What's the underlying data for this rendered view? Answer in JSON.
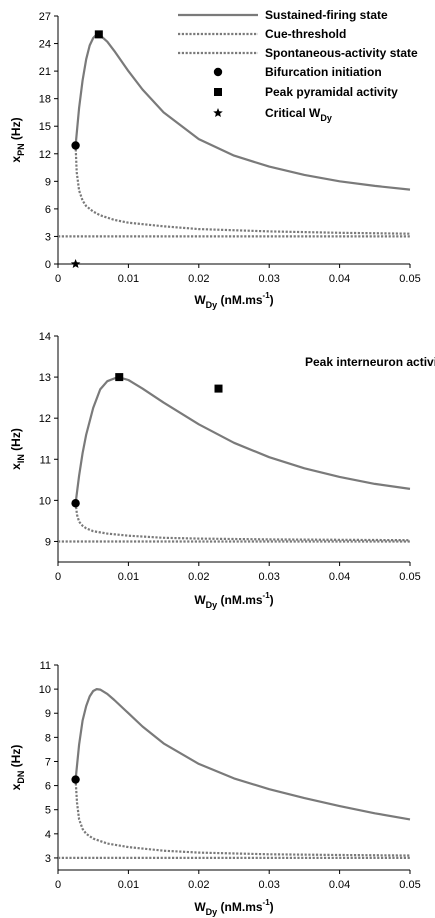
{
  "colors": {
    "curve": "#7a7a7a",
    "axis": "#000000",
    "marker": "#000000"
  },
  "legend": [
    {
      "label": "Sustained-firing state",
      "style": "solid-line"
    },
    {
      "label": "Cue-threshold",
      "style": "dotted-line"
    },
    {
      "label": "Spontaneous-activity state",
      "style": "dotted-line"
    },
    {
      "label": "Bifurcation initiation",
      "style": "circle-marker"
    },
    {
      "label": "Peak pyramidal activity",
      "style": "square-marker"
    },
    {
      "label": "Critical W",
      "sub": "Dy",
      "style": "star-marker"
    }
  ],
  "chart_data": [
    {
      "type": "line",
      "ylabel_main": "x",
      "ylabel_sub": "PN",
      "ylabel_unit": "(Hz)",
      "xlabel_main": "W",
      "xlabel_sub": "Dy",
      "xlabel_unit": "(nM.ms",
      "xlabel_sup": "-1",
      "xlabel_close": ")",
      "xlim": [
        0,
        0.05
      ],
      "ylim": [
        0,
        27
      ],
      "xticks": [
        0,
        0.01,
        0.02,
        0.03,
        0.04,
        0.05
      ],
      "xtick_labels": [
        "0",
        "0.01",
        "0.02",
        "0.03",
        "0.04",
        "0.05"
      ],
      "yticks": [
        0,
        3,
        6,
        9,
        12,
        15,
        18,
        21,
        24,
        27
      ],
      "series": [
        {
          "style": "solid",
          "points": [
            [
              0.0025,
              12.9
            ],
            [
              0.003,
              17
            ],
            [
              0.0035,
              20
            ],
            [
              0.004,
              22.3
            ],
            [
              0.0045,
              23.8
            ],
            [
              0.005,
              24.6
            ],
            [
              0.0055,
              25
            ],
            [
              0.006,
              24.9
            ],
            [
              0.007,
              24.2
            ],
            [
              0.008,
              23.2
            ],
            [
              0.01,
              21
            ],
            [
              0.012,
              19
            ],
            [
              0.015,
              16.5
            ],
            [
              0.02,
              13.6
            ],
            [
              0.025,
              11.8
            ],
            [
              0.03,
              10.6
            ],
            [
              0.035,
              9.7
            ],
            [
              0.04,
              9
            ],
            [
              0.045,
              8.5
            ],
            [
              0.05,
              8.1
            ]
          ]
        },
        {
          "style": "dotted",
          "points": [
            [
              0.0025,
              12.9
            ],
            [
              0.00265,
              10
            ],
            [
              0.003,
              8
            ],
            [
              0.0035,
              6.9
            ],
            [
              0.004,
              6.3
            ],
            [
              0.005,
              5.7
            ],
            [
              0.006,
              5.3
            ],
            [
              0.008,
              4.8
            ],
            [
              0.01,
              4.5
            ],
            [
              0.015,
              4.1
            ],
            [
              0.02,
              3.8
            ],
            [
              0.03,
              3.55
            ],
            [
              0.04,
              3.4
            ],
            [
              0.05,
              3.3
            ]
          ]
        },
        {
          "style": "dotted",
          "points": [
            [
              0,
              3
            ],
            [
              0.05,
              3
            ]
          ]
        }
      ],
      "markers": [
        {
          "shape": "circle",
          "x": 0.0025,
          "y": 12.9
        },
        {
          "shape": "square",
          "x": 0.0058,
          "y": 25
        },
        {
          "shape": "star",
          "x": 0.0025,
          "y": 0
        }
      ]
    },
    {
      "type": "line",
      "ylabel_main": "x",
      "ylabel_sub": "IN",
      "ylabel_unit": "(Hz)",
      "xlabel_main": "W",
      "xlabel_sub": "Dy",
      "xlabel_unit": "(nM.ms",
      "xlabel_sup": "-1",
      "xlabel_close": ")",
      "xlim": [
        0,
        0.05
      ],
      "ylim": [
        8.5,
        14
      ],
      "xticks": [
        0,
        0.01,
        0.02,
        0.03,
        0.04,
        0.05
      ],
      "xtick_labels": [
        "0",
        "0.01",
        "0.02",
        "0.03",
        "0.04",
        "0.05"
      ],
      "yticks": [
        9,
        10,
        11,
        12,
        13,
        14
      ],
      "annotation": {
        "label": "Peak  interneuron activity",
        "x": 0.0228,
        "y": 12.72
      },
      "series": [
        {
          "style": "solid",
          "points": [
            [
              0.0025,
              9.93
            ],
            [
              0.003,
              10.6
            ],
            [
              0.0035,
              11.15
            ],
            [
              0.004,
              11.6
            ],
            [
              0.005,
              12.25
            ],
            [
              0.006,
              12.7
            ],
            [
              0.007,
              12.9
            ],
            [
              0.0085,
              13
            ],
            [
              0.01,
              12.93
            ],
            [
              0.012,
              12.72
            ],
            [
              0.015,
              12.38
            ],
            [
              0.02,
              11.85
            ],
            [
              0.025,
              11.4
            ],
            [
              0.03,
              11.05
            ],
            [
              0.035,
              10.78
            ],
            [
              0.04,
              10.57
            ],
            [
              0.045,
              10.4
            ],
            [
              0.05,
              10.28
            ]
          ]
        },
        {
          "style": "dotted",
          "points": [
            [
              0.0025,
              9.93
            ],
            [
              0.0027,
              9.65
            ],
            [
              0.003,
              9.48
            ],
            [
              0.0035,
              9.38
            ],
            [
              0.004,
              9.32
            ],
            [
              0.005,
              9.25
            ],
            [
              0.007,
              9.19
            ],
            [
              0.01,
              9.14
            ],
            [
              0.015,
              9.09
            ],
            [
              0.02,
              9.07
            ],
            [
              0.03,
              9.05
            ],
            [
              0.04,
              9.04
            ],
            [
              0.05,
              9.03
            ]
          ]
        },
        {
          "style": "dotted",
          "points": [
            [
              0,
              9
            ],
            [
              0.05,
              9
            ]
          ]
        }
      ],
      "markers": [
        {
          "shape": "circle",
          "x": 0.0025,
          "y": 9.93
        },
        {
          "shape": "square",
          "x": 0.0087,
          "y": 13
        },
        {
          "shape": "square",
          "x": 0.0228,
          "y": 12.72
        }
      ]
    },
    {
      "type": "line",
      "ylabel_main": "x",
      "ylabel_sub": "DN",
      "ylabel_unit": "(Hz)",
      "xlabel_main": "W",
      "xlabel_sub": "Dy",
      "xlabel_unit": "(nM.ms",
      "xlabel_sup": "-1",
      "xlabel_close": ")",
      "xlim": [
        0,
        0.05
      ],
      "ylim": [
        2.5,
        11
      ],
      "xticks": [
        0,
        0.01,
        0.02,
        0.03,
        0.04,
        0.05
      ],
      "xtick_labels": [
        "0",
        "0.01",
        "0.02",
        "0.03",
        "0.04",
        "0.05"
      ],
      "yticks": [
        3,
        4,
        5,
        6,
        7,
        8,
        9,
        10,
        11
      ],
      "series": [
        {
          "style": "solid",
          "points": [
            [
              0.0025,
              6.25
            ],
            [
              0.003,
              7.7
            ],
            [
              0.0035,
              8.7
            ],
            [
              0.004,
              9.3
            ],
            [
              0.0045,
              9.7
            ],
            [
              0.005,
              9.92
            ],
            [
              0.0055,
              10
            ],
            [
              0.006,
              9.98
            ],
            [
              0.007,
              9.8
            ],
            [
              0.008,
              9.55
            ],
            [
              0.01,
              9
            ],
            [
              0.012,
              8.45
            ],
            [
              0.015,
              7.75
            ],
            [
              0.02,
              6.9
            ],
            [
              0.025,
              6.3
            ],
            [
              0.03,
              5.85
            ],
            [
              0.035,
              5.48
            ],
            [
              0.04,
              5.15
            ],
            [
              0.045,
              4.85
            ],
            [
              0.05,
              4.6
            ]
          ]
        },
        {
          "style": "dotted",
          "points": [
            [
              0.0025,
              6.25
            ],
            [
              0.0027,
              5.3
            ],
            [
              0.003,
              4.6
            ],
            [
              0.0035,
              4.2
            ],
            [
              0.004,
              4
            ],
            [
              0.005,
              3.8
            ],
            [
              0.007,
              3.6
            ],
            [
              0.01,
              3.45
            ],
            [
              0.015,
              3.3
            ],
            [
              0.02,
              3.22
            ],
            [
              0.03,
              3.15
            ],
            [
              0.04,
              3.12
            ],
            [
              0.05,
              3.1
            ]
          ]
        },
        {
          "style": "dotted",
          "points": [
            [
              0,
              3
            ],
            [
              0.05,
              3
            ]
          ]
        }
      ],
      "markers": [
        {
          "shape": "circle",
          "x": 0.0025,
          "y": 6.25
        }
      ]
    }
  ]
}
